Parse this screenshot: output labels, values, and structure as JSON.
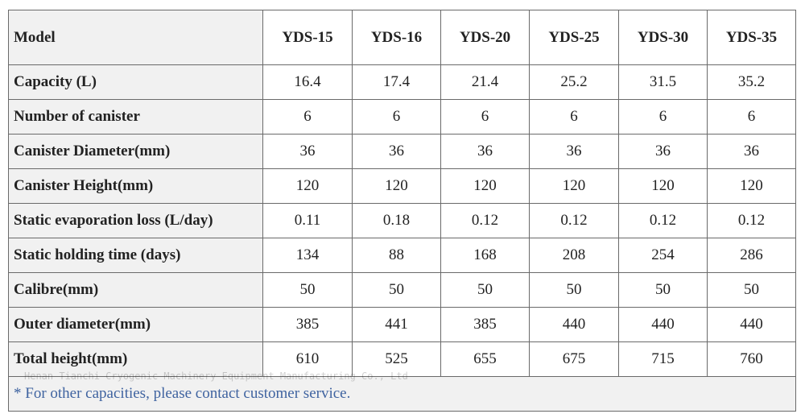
{
  "table": {
    "header": [
      "Model",
      "YDS-15",
      "YDS-16",
      "YDS-20",
      "YDS-25",
      "YDS-30",
      "YDS-35"
    ],
    "rows": [
      [
        "Capacity (L)",
        "16.4",
        "17.4",
        "21.4",
        "25.2",
        "31.5",
        "35.2"
      ],
      [
        "Number of canister",
        "6",
        "6",
        "6",
        "6",
        "6",
        "6"
      ],
      [
        "Canister Diameter(mm)",
        "36",
        "36",
        "36",
        "36",
        "36",
        "36"
      ],
      [
        "Canister Height(mm)",
        "120",
        "120",
        "120",
        "120",
        "120",
        "120"
      ],
      [
        "Static evaporation loss (L/day)",
        "0.11",
        "0.18",
        "0.12",
        "0.12",
        "0.12",
        "0.12"
      ],
      [
        "Static holding time (days)",
        "134",
        "88",
        "168",
        "208",
        "254",
        "286"
      ],
      [
        "Calibre(mm)",
        "50",
        "50",
        "50",
        "50",
        "50",
        "50"
      ],
      [
        "Outer diameter(mm)",
        "385",
        "441",
        "385",
        "440",
        "440",
        "440"
      ],
      [
        "Total height(mm)",
        "610",
        "525",
        "655",
        "675",
        "715",
        "760"
      ]
    ],
    "footnote": "* For other capacities, please contact customer service."
  },
  "watermark": "Henan Tianchi Cryogenic Machinery Equipment Manufacturing Co., Ltd"
}
